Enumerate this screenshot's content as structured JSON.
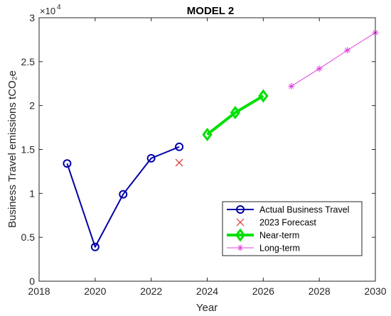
{
  "chart_data": {
    "type": "line",
    "title": "MODEL 2",
    "xlabel": "Year",
    "ylabel": "Business Travel emissions tCO₂e",
    "y_exponent": "×10",
    "y_exponent_power": "4",
    "xlim": [
      2018,
      2030
    ],
    "ylim": [
      0,
      3
    ],
    "xticks": [
      "2018",
      "2020",
      "2022",
      "2024",
      "2026",
      "2028",
      "2030"
    ],
    "yticks": [
      "0",
      "0.5",
      "1",
      "1.5",
      "2",
      "2.5",
      "3"
    ],
    "grid": false,
    "legend_position": "bottom-right",
    "series": [
      {
        "name": "Actual Business Travel",
        "color": "#0000a6",
        "marker": "circle",
        "linewidth": 2,
        "x": [
          2019,
          2020,
          2021,
          2022,
          2023
        ],
        "y": [
          1.34,
          0.39,
          0.99,
          1.4,
          1.53
        ]
      },
      {
        "name": "2023 Forecast",
        "color": "#e03030",
        "marker": "x",
        "linewidth": 0,
        "x": [
          2023
        ],
        "y": [
          1.35
        ]
      },
      {
        "name": "Near-term",
        "color": "#00e000",
        "marker": "diamond",
        "linewidth": 4,
        "x": [
          2024,
          2025,
          2026
        ],
        "y": [
          1.67,
          1.92,
          2.11
        ]
      },
      {
        "name": "Long-term",
        "color": "#e040e0",
        "marker": "asterisk",
        "linewidth": 1,
        "x": [
          2027,
          2028,
          2029,
          2030
        ],
        "y": [
          2.22,
          2.42,
          2.63,
          2.83
        ]
      }
    ]
  }
}
